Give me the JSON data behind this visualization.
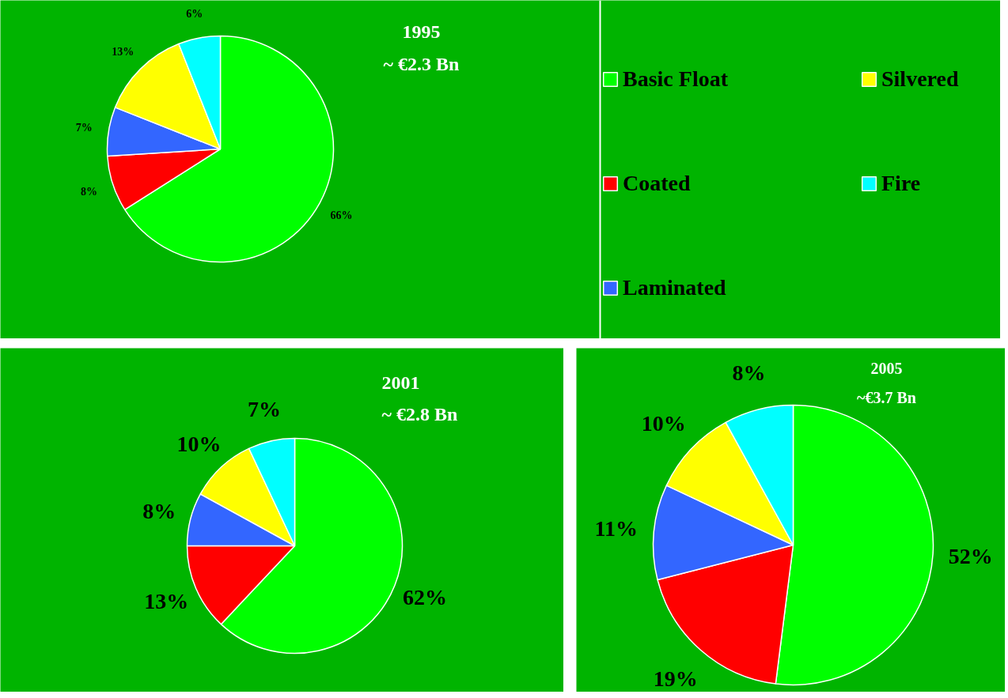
{
  "chart_data": [
    {
      "type": "pie",
      "title": "1995",
      "subtitle": "~ €2.3 Bn",
      "categories": [
        "Basic Float",
        "Coated",
        "Laminated",
        "Silvered",
        "Fire"
      ],
      "values": [
        66,
        8,
        7,
        13,
        6
      ],
      "value_labels": [
        "66%",
        "8%",
        "7%",
        "13%",
        "6%"
      ],
      "colors": [
        "#00ff00",
        "#ff0000",
        "#3366ff",
        "#ffff00",
        "#00ffff"
      ],
      "legend": "right"
    },
    {
      "type": "pie",
      "title": "2001",
      "subtitle": "~ €2.8 Bn",
      "values": [
        62,
        13,
        8,
        10,
        7
      ],
      "value_labels": [
        "62%",
        "13%",
        "8%",
        "10%",
        "7%"
      ],
      "colors": [
        "#00ff00",
        "#ff0000",
        "#3366ff",
        "#ffff00",
        "#00ffff"
      ]
    },
    {
      "type": "pie",
      "title": "2005",
      "subtitle": "~€3.7 Bn",
      "values": [
        52,
        19,
        11,
        10,
        8
      ],
      "value_labels": [
        "52%",
        "19%",
        "11%",
        "10%",
        "8%"
      ],
      "colors": [
        "#00ff00",
        "#ff0000",
        "#3366ff",
        "#ffff00",
        "#00ffff"
      ]
    }
  ]
}
